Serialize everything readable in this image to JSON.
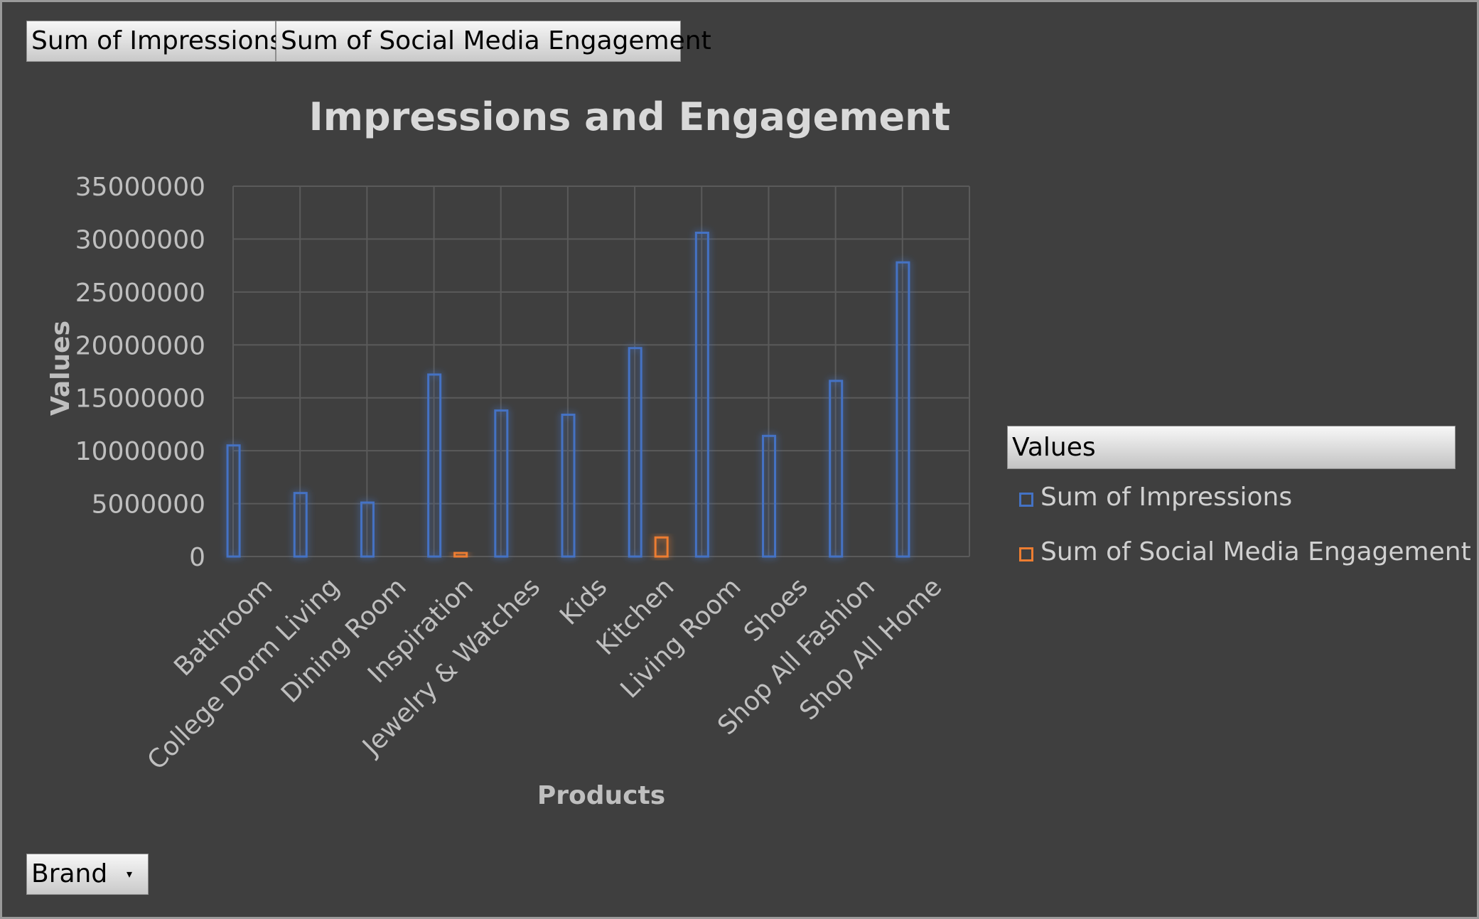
{
  "field_buttons": {
    "impressions": "Sum of Impressions",
    "engagement": "Sum of Social Media Engagement",
    "brand": "Brand",
    "brand_caret": "▾"
  },
  "legend": {
    "title": "Values",
    "items": [
      {
        "label": "Sum of Impressions",
        "color": "#4472c4"
      },
      {
        "label": "Sum of Social Media Engagement",
        "color": "#ed7d31"
      }
    ]
  },
  "chart_data": {
    "type": "bar",
    "title": "Impressions and Engagement",
    "xlabel": "Products",
    "ylabel": "Values",
    "ylim": [
      0,
      35000000
    ],
    "yticks": [
      0,
      5000000,
      10000000,
      15000000,
      20000000,
      25000000,
      30000000,
      35000000
    ],
    "grid": true,
    "legend_position": "right",
    "categories": [
      "Bathroom",
      "College Dorm Living",
      "Dining Room",
      "Inspiration",
      "Jewelry & Watches",
      "Kids",
      "Kitchen",
      "Living Room",
      "Shoes",
      "Shop All Fashion",
      "Shop All Home"
    ],
    "series": [
      {
        "name": "Sum of Impressions",
        "color": "#4472c4",
        "values": [
          10500000,
          6000000,
          5100000,
          17200000,
          13800000,
          13400000,
          19700000,
          30600000,
          11400000,
          16600000,
          27800000
        ]
      },
      {
        "name": "Sum of Social Media Engagement",
        "color": "#ed7d31",
        "values": [
          0,
          0,
          0,
          350000,
          0,
          0,
          1800000,
          0,
          0,
          0,
          0
        ]
      }
    ]
  }
}
